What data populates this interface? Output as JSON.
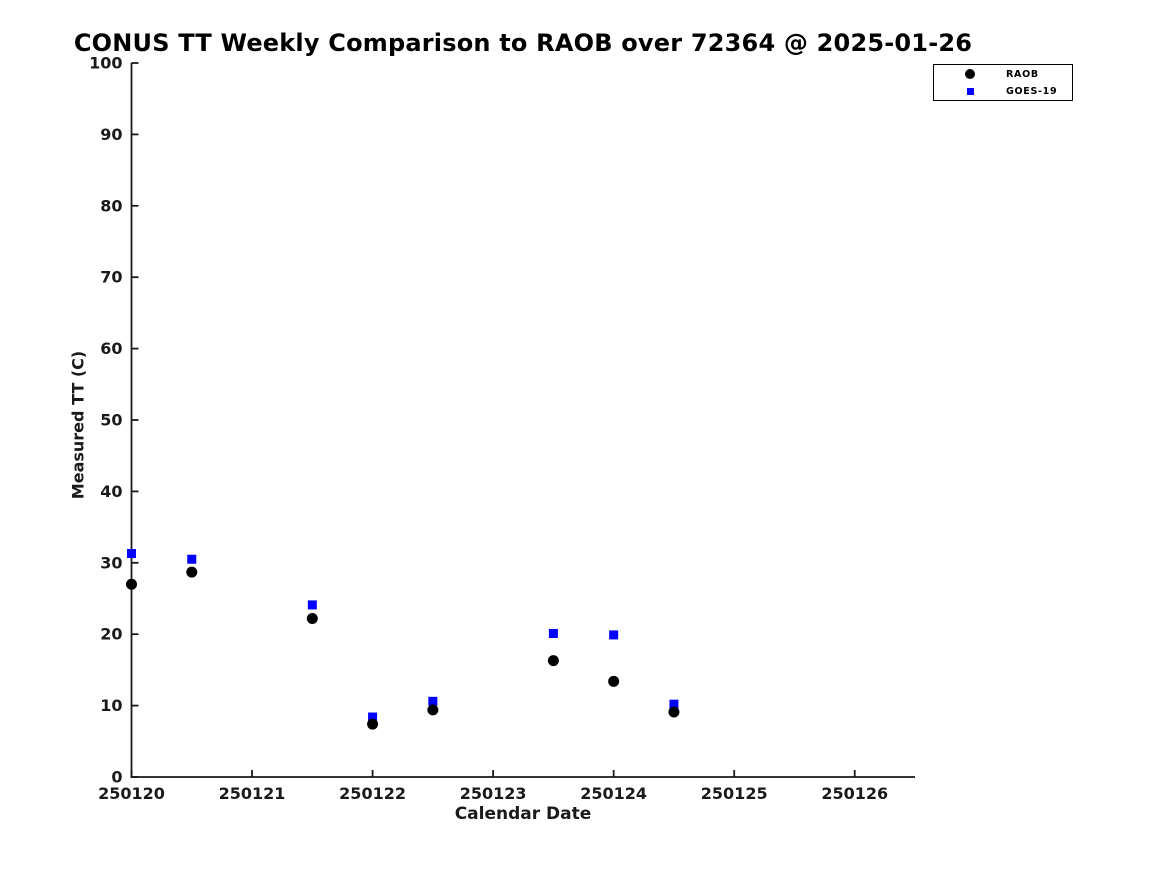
{
  "chart_data": {
    "type": "scatter",
    "title": "CONUS TT Weekly Comparison to RAOB over 72364 @ 2025-01-26",
    "xlabel": "Calendar Date",
    "ylabel": "Measured TT (C)",
    "xlim": [
      250120,
      250126.5
    ],
    "ylim": [
      0,
      100
    ],
    "xticks": [
      250120,
      250121,
      250122,
      250123,
      250124,
      250125,
      250126
    ],
    "yticks": [
      0,
      10,
      20,
      30,
      40,
      50,
      60,
      70,
      80,
      90,
      100
    ],
    "grid": false,
    "axis_color": "#1a1a1a",
    "legend_position": "top-right",
    "series": [
      {
        "name": "RAOB",
        "marker": "circle",
        "color": "#000000",
        "points": [
          [
            250120.0,
            27.0
          ],
          [
            250120.5,
            28.7
          ],
          [
            250121.5,
            22.2
          ],
          [
            250122.0,
            7.4
          ],
          [
            250122.5,
            9.4
          ],
          [
            250123.5,
            16.3
          ],
          [
            250124.0,
            13.4
          ],
          [
            250124.5,
            9.1
          ]
        ]
      },
      {
        "name": "GOES-19",
        "marker": "square",
        "color": "#0000ff",
        "points": [
          [
            250120.0,
            31.3
          ],
          [
            250120.5,
            30.5
          ],
          [
            250121.5,
            24.1
          ],
          [
            250122.0,
            8.4
          ],
          [
            250122.5,
            10.6
          ],
          [
            250123.5,
            20.1
          ],
          [
            250124.0,
            19.9
          ],
          [
            250124.5,
            10.2
          ]
        ]
      }
    ]
  }
}
